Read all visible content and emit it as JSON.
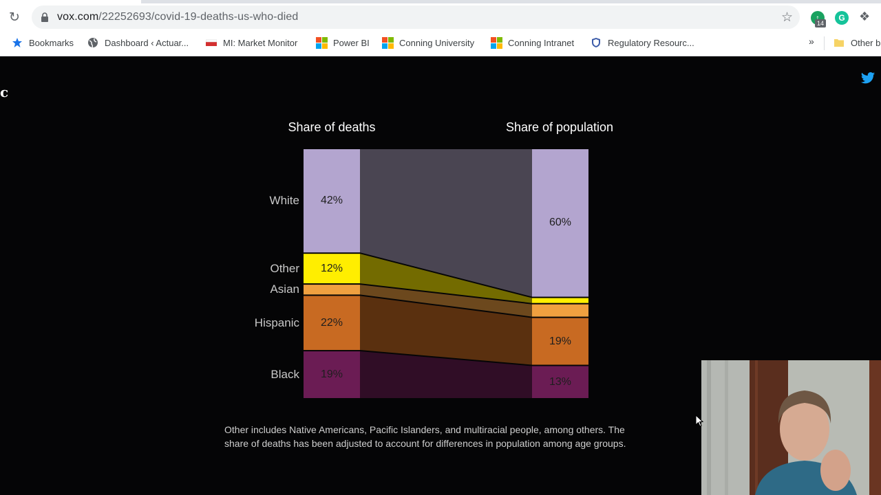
{
  "browser": {
    "url_host": "vox.com",
    "url_path": "/22252693/covid-19-deaths-us-who-died",
    "extension_badge": "14",
    "bookmarks": [
      {
        "label": "Bookmarks",
        "icon": "star-icon"
      },
      {
        "label": "Dashboard ‹ Actuar...",
        "icon": "globe-icon"
      },
      {
        "label": "MI: Market Monitor",
        "icon": "flag-icon"
      },
      {
        "label": "Power BI",
        "icon": "microsoft-icon"
      },
      {
        "label": "Conning University",
        "icon": "microsoft-icon"
      },
      {
        "label": "Conning Intranet",
        "icon": "microsoft-icon"
      },
      {
        "label": "Regulatory Resourc...",
        "icon": "shield-icon"
      }
    ],
    "overflow_label": "»",
    "other_bookmarks": "Other b"
  },
  "chart_data": {
    "type": "alluvial",
    "columns": [
      "Share of deaths",
      "Share of population"
    ],
    "categories": [
      "White",
      "Other",
      "Asian",
      "Hispanic",
      "Black"
    ],
    "series": [
      {
        "name": "Share of deaths",
        "values": [
          42,
          12,
          4,
          22,
          19
        ]
      },
      {
        "name": "Share of population",
        "values": [
          60,
          2,
          5,
          19,
          13
        ]
      }
    ],
    "value_labels": {
      "deaths": [
        "42%",
        "12%",
        "",
        "22%",
        "19%"
      ],
      "population": [
        "60%",
        "",
        "",
        "19%",
        "13%"
      ]
    },
    "colors": {
      "White": "#b3a5cf",
      "Other": "#ffee00",
      "Asian": "#f0a040",
      "Hispanic": "#c86a22",
      "Black": "#6b1c54"
    },
    "footnote": "Other includes Native Americans, Pacific Islanders, and multiracial people, among others. The share of deaths has been adjusted to account for differences in population among age groups."
  }
}
